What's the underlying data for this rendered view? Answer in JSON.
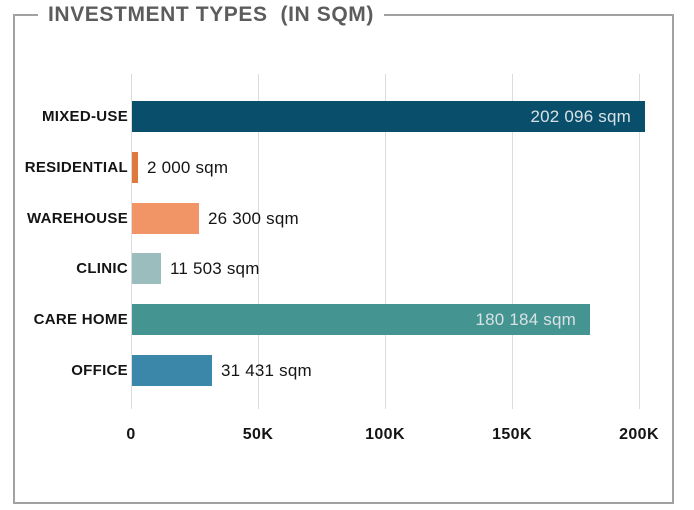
{
  "header": {
    "title": "INVESTMENT TYPES  (IN SQM)"
  },
  "colors": {
    "frame_border": "#a2a2a2",
    "title_text": "#5c5c5c",
    "gridline": "#dcdcdc",
    "axis_text": "#141414",
    "inside_label_text": "#d8e2e4",
    "outside_label_text": "#151515"
  },
  "chart_data": {
    "type": "bar",
    "orientation": "horizontal",
    "title": "INVESTMENT TYPES  (IN SQM)",
    "xlabel": "",
    "ylabel": "",
    "categories": [
      "MIXED-USE",
      "RESIDENTIAL",
      "WAREHOUSE",
      "CLINIC",
      "CARE HOME",
      "OFFICE"
    ],
    "values": [
      202096,
      2000,
      26300,
      11503,
      180184,
      31431
    ],
    "value_labels": [
      "202 096 sqm",
      "2 000 sqm",
      "26 300 sqm",
      "11 503 sqm",
      "180 184 sqm",
      "31 431 sqm"
    ],
    "bar_colors": [
      "#094f6c",
      "#e0793e",
      "#f29566",
      "#9cbdbe",
      "#449492",
      "#3a87a9"
    ],
    "label_inside": [
      true,
      false,
      false,
      false,
      true,
      false
    ],
    "x_ticks": [
      "0",
      "50K",
      "100K",
      "150K",
      "200K"
    ],
    "x_tick_values": [
      0,
      50000,
      100000,
      150000,
      200000
    ],
    "xlim": [
      0,
      213000
    ],
    "grid": true,
    "legend": "none",
    "unit": "sqm"
  }
}
